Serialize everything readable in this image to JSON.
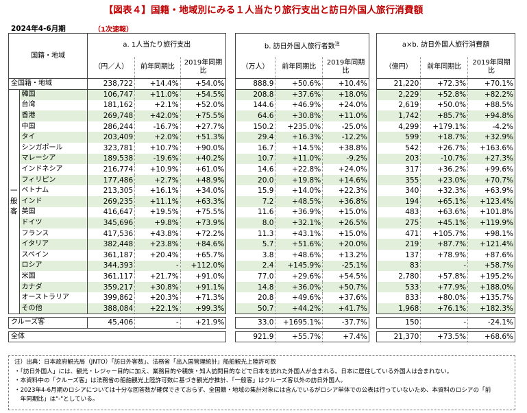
{
  "title": "【図表４】国籍・地域別にみる１人当たり旅行支出と訪日外国人旅行消費額",
  "period": "2024年4-6月期",
  "prelim": "（1次速報）",
  "header": {
    "region_label": "国籍・地域",
    "side_label": "一般客",
    "a_title": "a. 1人当たり旅行支出",
    "b_title": "b. 訪日外国人旅行者数",
    "b_note_mark": "注",
    "c_title": "a×b. 訪日外国人旅行消費額",
    "a_unit": "（円／人）",
    "b_unit": "（万人）",
    "c_unit": "（億円）",
    "yoy": "前年同期比",
    "vs2019": "2019年同期比"
  },
  "rows": [
    {
      "name": "全国籍・地域",
      "a": "238,722",
      "a1": "+14.4%",
      "a2": "+54.0%",
      "b": "888.9",
      "b1": "+50.6%",
      "b2": "+10.4%",
      "c": "21,220",
      "c1": "+72.3%",
      "c2": "+70.1%",
      "shade": false
    },
    {
      "name": "韓国",
      "a": "106,747",
      "a1": "+11.0%",
      "a2": "+54.5%",
      "b": "208.8",
      "b1": "+37.6%",
      "b2": "+18.0%",
      "c": "2,229",
      "c1": "+52.8%",
      "c2": "+82.2%",
      "shade": true
    },
    {
      "name": "台湾",
      "a": "181,162",
      "a1": "+2.1%",
      "a2": "+52.0%",
      "b": "144.6",
      "b1": "+46.9%",
      "b2": "+24.0%",
      "c": "2,619",
      "c1": "+50.0%",
      "c2": "+88.5%",
      "shade": false
    },
    {
      "name": "香港",
      "a": "269,748",
      "a1": "+42.0%",
      "a2": "+75.5%",
      "b": "64.6",
      "b1": "+30.8%",
      "b2": "+11.0%",
      "c": "1,742",
      "c1": "+85.7%",
      "c2": "+94.8%",
      "shade": true
    },
    {
      "name": "中国",
      "a": "286,244",
      "a1": "-16.7%",
      "a2": "+27.7%",
      "b": "150.2",
      "b1": "+235.0%",
      "b2": "-25.0%",
      "c": "4,299",
      "c1": "+179.1%",
      "c2": "-4.2%",
      "shade": false
    },
    {
      "name": "タイ",
      "a": "203,409",
      "a1": "+2.0%",
      "a2": "+51.3%",
      "b": "29.4",
      "b1": "+16.3%",
      "b2": "-12.2%",
      "c": "599",
      "c1": "+18.7%",
      "c2": "+32.9%",
      "shade": true
    },
    {
      "name": "シンガポール",
      "a": "323,781",
      "a1": "+10.7%",
      "a2": "+90.0%",
      "b": "16.7",
      "b1": "+14.5%",
      "b2": "+38.8%",
      "c": "542",
      "c1": "+26.7%",
      "c2": "+163.6%",
      "shade": false
    },
    {
      "name": "マレーシア",
      "a": "189,538",
      "a1": "-19.6%",
      "a2": "+40.2%",
      "b": "10.7",
      "b1": "+11.0%",
      "b2": "-9.2%",
      "c": "203",
      "c1": "-10.7%",
      "c2": "+27.3%",
      "shade": true
    },
    {
      "name": "インドネシア",
      "a": "216,774",
      "a1": "+10.9%",
      "a2": "+61.0%",
      "b": "14.6",
      "b1": "+22.8%",
      "b2": "+24.0%",
      "c": "317",
      "c1": "+36.2%",
      "c2": "+99.6%",
      "shade": false
    },
    {
      "name": "フィリピン",
      "a": "177,486",
      "a1": "+2.7%",
      "a2": "+48.9%",
      "b": "20.0",
      "b1": "+19.8%",
      "b2": "+14.6%",
      "c": "355",
      "c1": "+23.0%",
      "c2": "+70.7%",
      "shade": true
    },
    {
      "name": "ベトナム",
      "a": "213,305",
      "a1": "+16.1%",
      "a2": "+34.0%",
      "b": "15.9",
      "b1": "+14.0%",
      "b2": "+22.3%",
      "c": "340",
      "c1": "+32.3%",
      "c2": "+63.9%",
      "shade": false
    },
    {
      "name": "インド",
      "a": "269,235",
      "a1": "+11.1%",
      "a2": "+63.3%",
      "b": "7.2",
      "b1": "+48.5%",
      "b2": "+36.8%",
      "c": "194",
      "c1": "+65.1%",
      "c2": "+123.4%",
      "shade": true
    },
    {
      "name": "英国",
      "a": "416,647",
      "a1": "+19.5%",
      "a2": "+75.5%",
      "b": "11.6",
      "b1": "+36.9%",
      "b2": "+15.0%",
      "c": "483",
      "c1": "+63.6%",
      "c2": "+101.8%",
      "shade": false
    },
    {
      "name": "ドイツ",
      "a": "345,696",
      "a1": "+9.8%",
      "a2": "+73.9%",
      "b": "8.0",
      "b1": "+32.1%",
      "b2": "+26.5%",
      "c": "275",
      "c1": "+45.1%",
      "c2": "+119.9%",
      "shade": true
    },
    {
      "name": "フランス",
      "a": "417,536",
      "a1": "+43.8%",
      "a2": "+72.2%",
      "b": "11.3",
      "b1": "+43.1%",
      "b2": "+15.0%",
      "c": "471",
      "c1": "+105.7%",
      "c2": "+98.1%",
      "shade": false
    },
    {
      "name": "イタリア",
      "a": "382,448",
      "a1": "+23.8%",
      "a2": "+84.6%",
      "b": "5.7",
      "b1": "+51.6%",
      "b2": "+20.0%",
      "c": "219",
      "c1": "+87.7%",
      "c2": "+121.4%",
      "shade": true
    },
    {
      "name": "スペイン",
      "a": "361,187",
      "a1": "+20.4%",
      "a2": "+65.7%",
      "b": "3.8",
      "b1": "+48.6%",
      "b2": "+13.2%",
      "c": "137",
      "c1": "+78.9%",
      "c2": "+87.6%",
      "shade": false
    },
    {
      "name": "ロシア",
      "a": "344,393",
      "a1": "-",
      "a2": "+112.0%",
      "b": "2.4",
      "b1": "+145.9%",
      "b2": "-25.1%",
      "c": "83",
      "c1": "-",
      "c2": "+58.7%",
      "shade": true
    },
    {
      "name": "米国",
      "a": "361,117",
      "a1": "+21.7%",
      "a2": "+91.0%",
      "b": "77.0",
      "b1": "+29.6%",
      "b2": "+54.5%",
      "c": "2,780",
      "c1": "+57.8%",
      "c2": "+195.2%",
      "shade": false
    },
    {
      "name": "カナダ",
      "a": "359,217",
      "a1": "+30.8%",
      "a2": "+91.1%",
      "b": "14.8",
      "b1": "+36.0%",
      "b2": "+50.7%",
      "c": "533",
      "c1": "+77.9%",
      "c2": "+188.0%",
      "shade": true
    },
    {
      "name": "オーストラリア",
      "a": "399,862",
      "a1": "+20.3%",
      "a2": "+71.3%",
      "b": "20.8",
      "b1": "+49.6%",
      "b2": "+37.6%",
      "c": "833",
      "c1": "+80.0%",
      "c2": "+135.7%",
      "shade": false
    },
    {
      "name": "その他",
      "a": "388,084",
      "a1": "+22.1%",
      "a2": "+99.3%",
      "b": "50.7",
      "b1": "+44.2%",
      "b2": "+41.7%",
      "c": "1,968",
      "c1": "+76.1%",
      "c2": "+182.3%",
      "shade": true
    }
  ],
  "cruise": {
    "name": "クルーズ客",
    "a": "45,406",
    "a1": "-",
    "a2": "+21.9%",
    "b": "33.0",
    "b1": "+1695.1%",
    "b2": "-37.7%",
    "c": "150",
    "c1": "-",
    "c2": "-24.1%"
  },
  "total": {
    "name": "全体",
    "b": "921.9",
    "b1": "+55.7%",
    "b2": "+7.4%",
    "c": "21,370",
    "c1": "+73.5%",
    "c2": "+68.6%"
  },
  "notes": [
    "注）出典：日本政府観光局（JNTO）「訪日外客数」、法務省「出入国管理統計」船舶観光上陸許可数",
    "・「訪日外国人」には、観光・レジャー目的に加え、業務目的や親族・知人訪問目的などで日本を訪れた外国人が含まれる。日本に居住している外国人は含まれない。",
    "・本資料中の「クルーズ客」は法務省の船舶観光上陸許可数に基づき観光庁推計、「一般客」はクルーズ客以外の訪日外国人。",
    "・2023年4-6月期のロシアについては十分な回答数が確保できておらず、全国籍・地域の集計対象には含んでいるがロシア単体での公表は行っていないため、本資料のロシアの「前",
    "　年同期比」は\"-\"としている。"
  ]
}
